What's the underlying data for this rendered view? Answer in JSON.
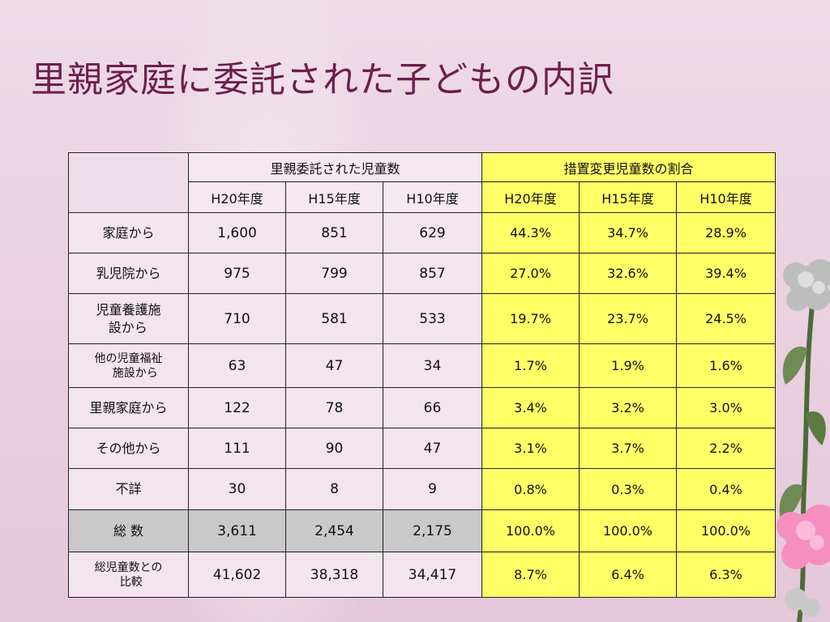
{
  "title": "里親家庭に委託された子どもの内訳",
  "table": {
    "group_headers": {
      "counts": "里親委託された児童数",
      "ratios": "措置変更児童数の割合"
    },
    "year_headers": [
      "H20年度",
      "H15年度",
      "H10年度",
      "H20年度",
      "H15年度",
      "H10年度"
    ],
    "rows": [
      {
        "label": "家庭から",
        "values": [
          "1,600",
          "851",
          "629",
          "44.3%",
          "34.7%",
          "28.9%"
        ]
      },
      {
        "label": "乳児院から",
        "values": [
          "975",
          "799",
          "857",
          "27.0%",
          "32.6%",
          "39.4%"
        ]
      },
      {
        "label_lines": [
          "児童養護施",
          "設から"
        ],
        "values": [
          "710",
          "581",
          "533",
          "19.7%",
          "23.7%",
          "24.5%"
        ]
      },
      {
        "label_lines": [
          "他の児童福祉",
          "施設から"
        ],
        "values": [
          "63",
          "47",
          "34",
          "1.7%",
          "1.9%",
          "1.6%"
        ]
      },
      {
        "label": "里親家庭から",
        "values": [
          "122",
          "78",
          "66",
          "3.4%",
          "3.2%",
          "3.0%"
        ]
      },
      {
        "label": "その他から",
        "values": [
          "111",
          "90",
          "47",
          "3.1%",
          "3.7%",
          "2.2%"
        ]
      },
      {
        "label": "不詳",
        "values": [
          "30",
          "8",
          "9",
          "0.8%",
          "0.3%",
          "0.4%"
        ]
      },
      {
        "label": "総 数",
        "values": [
          "3,611",
          "2,454",
          "2,175",
          "100.0%",
          "100.0%",
          "100.0%"
        ]
      },
      {
        "label_lines": [
          "総児童数との",
          "比較"
        ],
        "values": [
          "41,602",
          "38,318",
          "34,417",
          "8.7%",
          "6.4%",
          "6.3%"
        ]
      }
    ]
  },
  "colors": {
    "title": "#6e1f4a",
    "ratio_highlight": "#ffff66",
    "total_row": "#c9c9c9",
    "background": "#ead3e1"
  },
  "decoration": {
    "icon": "carnation-flower-icon"
  }
}
